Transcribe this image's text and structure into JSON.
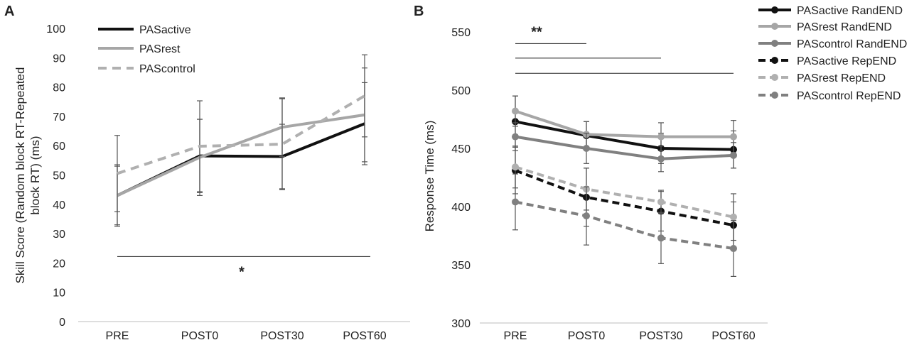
{
  "chart_data": [
    {
      "panel": "A",
      "type": "line",
      "categories": [
        "PRE",
        "POST0",
        "POST30",
        "POST60"
      ],
      "ylabel_line1": "Skill Score (Random block RT-Repeated",
      "ylabel_line2": "block RT) (ms)",
      "ylim": [
        0,
        100
      ],
      "yticks": [
        0,
        10,
        20,
        30,
        40,
        50,
        60,
        70,
        80,
        90,
        100
      ],
      "legend_position": "top-left",
      "series": [
        {
          "name": "PASactive",
          "color": "#111111",
          "dash": "solid",
          "markers": false,
          "values": [
            43,
            56.5,
            56.3,
            67.5
          ],
          "err": [
            10,
            12.5,
            11,
            14
          ]
        },
        {
          "name": "PASrest",
          "color": "#a6a6a6",
          "dash": "solid",
          "markers": false,
          "values": [
            43,
            56,
            66.3,
            70.5
          ],
          "err": [
            10.5,
            13,
            10,
            16
          ]
        },
        {
          "name": "PAScontrol",
          "color": "#b0b0b0",
          "dash": "dashed",
          "markers": false,
          "values": [
            50.5,
            59.8,
            60.5,
            77
          ],
          "err": [
            13,
            15.5,
            15.5,
            14
          ]
        }
      ],
      "significance": [
        {
          "label": "*",
          "from": "PRE",
          "to": "POST60",
          "y": 22.2
        }
      ]
    },
    {
      "panel": "B",
      "type": "line",
      "categories": [
        "PRE",
        "POST0",
        "POST30",
        "POST60"
      ],
      "ylabel": "Response Time (ms)",
      "ylim": [
        300,
        550
      ],
      "yticks": [
        300,
        350,
        400,
        450,
        500,
        550
      ],
      "legend_position": "top-right",
      "series": [
        {
          "name": "PASactive RandEND",
          "color": "#111111",
          "dash": "solid",
          "markers": true,
          "values": [
            473,
            461,
            450,
            449
          ],
          "err": [
            22,
            12,
            13,
            16
          ]
        },
        {
          "name": "PASrest RandEND",
          "color": "#a6a6a6",
          "dash": "solid",
          "markers": true,
          "values": [
            482,
            462,
            460,
            460
          ],
          "err": [
            13,
            11,
            12,
            14
          ]
        },
        {
          "name": "PAScontrol RandEND",
          "color": "#808080",
          "dash": "solid",
          "markers": true,
          "values": [
            460,
            450,
            441,
            444
          ],
          "err": [
            12,
            13,
            11,
            11
          ]
        },
        {
          "name": "PASactive RepEND",
          "color": "#111111",
          "dash": "dashed",
          "markers": true,
          "values": [
            431,
            408,
            396,
            384
          ],
          "err": [
            20,
            25,
            17,
            20
          ]
        },
        {
          "name": "PASrest RepEND",
          "color": "#b0b0b0",
          "dash": "dashed",
          "markers": true,
          "values": [
            434,
            415,
            404,
            391
          ],
          "err": [
            18,
            18,
            10,
            20
          ]
        },
        {
          "name": "PAScontrol RepEND",
          "color": "#808080",
          "dash": "dashed",
          "markers": true,
          "values": [
            404,
            392,
            373,
            364
          ],
          "err": [
            24,
            25,
            22,
            24
          ]
        }
      ],
      "significance": [
        {
          "label": "**",
          "from": "PRE",
          "to": "POST0",
          "y": 540
        },
        {
          "label": "",
          "from": "PRE",
          "to": "POST30",
          "y": 527.5
        },
        {
          "label": "",
          "from": "PRE",
          "to": "POST60",
          "y": 514.5
        }
      ]
    }
  ]
}
